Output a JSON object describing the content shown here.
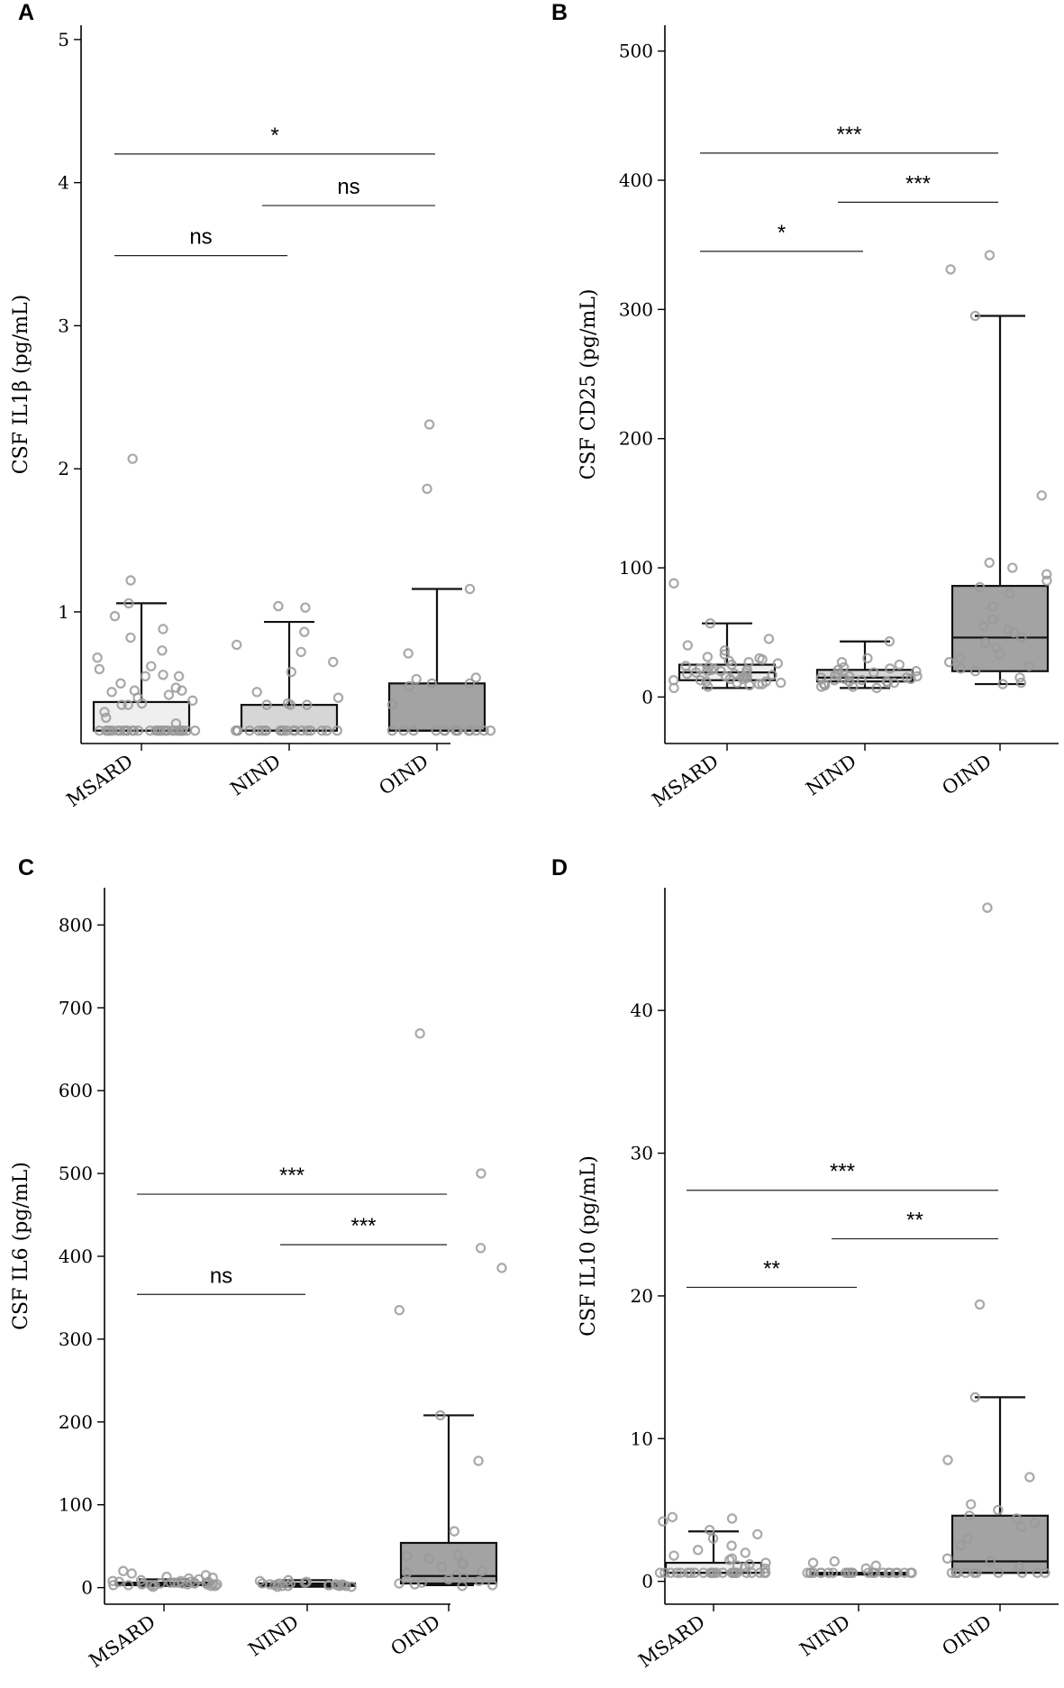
{
  "chart_data": [
    {
      "panel": "A",
      "type": "box",
      "ylabel": "CSF IL1β (pg/mL)",
      "ylim": [
        0.08,
        5.1
      ],
      "yticks": [
        1,
        2,
        3,
        4,
        5
      ],
      "categories": [
        "MSARD",
        "NIND",
        "OIND"
      ],
      "boxes": [
        {
          "name": "MSARD",
          "q1": 0.17,
          "median": 0.17,
          "q3": 0.37,
          "whisker_low": 0.17,
          "whisker_high": 1.06,
          "fill": "#efefef"
        },
        {
          "name": "NIND",
          "q1": 0.17,
          "median": 0.17,
          "q3": 0.35,
          "whisker_low": 0.17,
          "whisker_high": 0.93,
          "fill": "#d6d6d6"
        },
        {
          "name": "OIND",
          "q1": 0.17,
          "median": 0.17,
          "q3": 0.5,
          "whisker_low": 0.17,
          "whisker_high": 1.16,
          "fill": "#a3a3a3"
        }
      ],
      "points": [
        [
          0.17,
          0.17,
          0.17,
          0.17,
          0.17,
          0.17,
          0.17,
          0.17,
          0.17,
          0.17,
          0.17,
          0.17,
          0.17,
          0.17,
          0.17,
          0.17,
          0.17,
          0.17,
          0.17,
          0.17,
          0.17,
          0.17,
          0.17,
          0.17,
          0.17,
          0.17,
          0.17,
          0.17,
          0.17,
          0.17,
          0.22,
          0.26,
          0.3,
          0.35,
          0.35,
          0.36,
          0.38,
          0.4,
          0.42,
          0.44,
          0.45,
          0.45,
          0.47,
          0.5,
          0.55,
          0.55,
          0.56,
          0.6,
          0.62,
          0.68,
          0.73,
          0.82,
          0.88,
          0.97,
          1.06,
          1.22,
          2.07
        ],
        [
          0.17,
          0.17,
          0.17,
          0.17,
          0.17,
          0.17,
          0.17,
          0.17,
          0.17,
          0.17,
          0.17,
          0.17,
          0.17,
          0.17,
          0.17,
          0.17,
          0.17,
          0.17,
          0.17,
          0.17,
          0.35,
          0.35,
          0.35,
          0.36,
          0.4,
          0.44,
          0.58,
          0.65,
          0.72,
          0.77,
          0.86,
          1.03,
          1.04
        ],
        [
          0.17,
          0.17,
          0.17,
          0.17,
          0.17,
          0.17,
          0.17,
          0.17,
          0.17,
          0.17,
          0.17,
          0.17,
          0.17,
          0.17,
          0.35,
          0.48,
          0.5,
          0.5,
          0.53,
          0.54,
          0.71,
          1.16,
          1.86,
          2.31
        ]
      ],
      "comparisons": [
        {
          "from": "MSARD",
          "to": "NIND",
          "label": "ns",
          "y": 3.49
        },
        {
          "from": "NIND",
          "to": "OIND",
          "label": "ns",
          "y": 3.84
        },
        {
          "from": "MSARD",
          "to": "OIND",
          "label": "*",
          "y": 4.2
        }
      ]
    },
    {
      "panel": "B",
      "type": "box",
      "ylabel": "CSF CD25 (pg/mL)",
      "ylim": [
        -36,
        520
      ],
      "yticks": [
        0,
        100,
        200,
        300,
        400,
        500
      ],
      "categories": [
        "MSARD",
        "NIND",
        "OIND"
      ],
      "boxes": [
        {
          "name": "MSARD",
          "q1": 13,
          "median": 19,
          "q3": 25,
          "whisker_low": 7,
          "whisker_high": 57,
          "fill": "#efefef"
        },
        {
          "name": "NIND",
          "q1": 12,
          "median": 15,
          "q3": 21,
          "whisker_low": 7,
          "whisker_high": 43,
          "fill": "#d6d6d6"
        },
        {
          "name": "OIND",
          "q1": 20,
          "median": 46,
          "q3": 86,
          "whisker_low": 10,
          "whisker_high": 295,
          "fill": "#a3a3a3"
        }
      ],
      "points": [
        [
          7,
          8,
          9,
          10,
          10,
          11,
          11,
          12,
          12,
          13,
          13,
          14,
          14,
          15,
          15,
          16,
          16,
          17,
          17,
          18,
          18,
          19,
          19,
          20,
          20,
          21,
          21,
          22,
          22,
          23,
          24,
          25,
          26,
          27,
          28,
          29,
          30,
          31,
          33,
          36,
          40,
          45,
          57,
          88
        ],
        [
          7,
          8,
          8,
          9,
          10,
          10,
          11,
          11,
          12,
          12,
          13,
          13,
          14,
          14,
          15,
          15,
          16,
          16,
          17,
          18,
          19,
          20,
          21,
          22,
          23,
          25,
          27,
          30,
          43
        ],
        [
          10,
          11,
          15,
          20,
          22,
          24,
          27,
          30,
          33,
          38,
          42,
          46,
          50,
          52,
          55,
          60,
          70,
          80,
          85,
          90,
          95,
          100,
          104,
          156,
          295,
          331,
          342
        ]
      ],
      "comparisons": [
        {
          "from": "MSARD",
          "to": "NIND",
          "label": "*",
          "y": 345
        },
        {
          "from": "NIND",
          "to": "OIND",
          "label": "***",
          "y": 383
        },
        {
          "from": "MSARD",
          "to": "OIND",
          "label": "***",
          "y": 421
        }
      ]
    },
    {
      "panel": "C",
      "type": "box",
      "ylabel": "CSF IL6 (pg/mL)",
      "ylim": [
        -20,
        845
      ],
      "yticks": [
        0,
        100,
        200,
        300,
        400,
        500,
        600,
        700,
        800
      ],
      "categories": [
        "MSARD",
        "NIND",
        "OIND"
      ],
      "boxes": [
        {
          "name": "MSARD",
          "q1": 3,
          "median": 4,
          "q3": 6,
          "whisker_low": 2,
          "whisker_high": 10,
          "fill": "#efefef"
        },
        {
          "name": "NIND",
          "q1": 2,
          "median": 3,
          "q3": 5,
          "whisker_low": 1,
          "whisker_high": 9,
          "fill": "#d6d6d6"
        },
        {
          "name": "OIND",
          "q1": 5,
          "median": 14,
          "q3": 54,
          "whisker_low": 3,
          "whisker_high": 208,
          "fill": "#a3a3a3"
        }
      ],
      "points": [
        [
          1,
          2,
          2,
          3,
          3,
          3,
          3,
          4,
          4,
          4,
          4,
          4,
          5,
          5,
          5,
          5,
          5,
          6,
          6,
          6,
          6,
          7,
          7,
          7,
          8,
          8,
          9,
          10,
          11,
          12,
          13,
          15,
          17,
          20
        ],
        [
          1,
          1,
          2,
          2,
          2,
          2,
          3,
          3,
          3,
          3,
          3,
          4,
          4,
          4,
          4,
          5,
          5,
          5,
          6,
          7,
          8,
          9
        ],
        [
          2,
          3,
          4,
          5,
          6,
          8,
          10,
          12,
          15,
          18,
          20,
          25,
          28,
          30,
          35,
          38,
          40,
          68,
          153,
          208,
          335,
          386,
          410,
          500,
          669
        ]
      ],
      "comparisons": [
        {
          "from": "MSARD",
          "to": "NIND",
          "label": "ns",
          "y": 354
        },
        {
          "from": "NIND",
          "to": "OIND",
          "label": "***",
          "y": 414
        },
        {
          "from": "MSARD",
          "to": "OIND",
          "label": "***",
          "y": 475
        }
      ]
    },
    {
      "panel": "D",
      "type": "box",
      "ylabel": "CSF IL10 (pg/mL)",
      "ylim": [
        -1.6,
        48.6
      ],
      "yticks": [
        0,
        10,
        20,
        30,
        40
      ],
      "categories": [
        "MSARD",
        "NIND",
        "OIND"
      ],
      "boxes": [
        {
          "name": "MSARD",
          "q1": 0.6,
          "median": 0.6,
          "q3": 1.3,
          "whisker_low": 0.6,
          "whisker_high": 3.5,
          "fill": "#efefef"
        },
        {
          "name": "NIND",
          "q1": 0.6,
          "median": 0.6,
          "q3": 0.6,
          "whisker_low": 0.6,
          "whisker_high": 0.6,
          "fill": "#d6d6d6"
        },
        {
          "name": "OIND",
          "q1": 0.6,
          "median": 1.4,
          "q3": 4.6,
          "whisker_low": 0.6,
          "whisker_high": 12.9,
          "fill": "#a3a3a3"
        }
      ],
      "points": [
        [
          0.6,
          0.6,
          0.6,
          0.6,
          0.6,
          0.6,
          0.6,
          0.6,
          0.6,
          0.6,
          0.6,
          0.6,
          0.6,
          0.6,
          0.6,
          0.6,
          0.6,
          0.6,
          0.6,
          0.6,
          0.6,
          0.6,
          0.6,
          0.6,
          0.6,
          0.9,
          1.0,
          1.1,
          1.2,
          1.3,
          1.5,
          1.6,
          1.8,
          2.0,
          2.2,
          2.5,
          3.0,
          3.3,
          3.6,
          4.2,
          4.4,
          4.5
        ],
        [
          0.6,
          0.6,
          0.6,
          0.6,
          0.6,
          0.6,
          0.6,
          0.6,
          0.6,
          0.6,
          0.6,
          0.6,
          0.6,
          0.6,
          0.6,
          0.6,
          0.6,
          0.6,
          0.6,
          0.6,
          0.6,
          0.6,
          0.6,
          0.6,
          0.9,
          1.1,
          1.3,
          1.4
        ],
        [
          0.6,
          0.6,
          0.6,
          0.6,
          0.6,
          0.6,
          0.6,
          0.6,
          0.6,
          0.6,
          0.6,
          1.0,
          1.4,
          1.6,
          2.5,
          3.0,
          3.8,
          4.1,
          4.4,
          4.6,
          5.0,
          5.4,
          7.3,
          8.5,
          12.9,
          19.4,
          47.2
        ]
      ],
      "comparisons": [
        {
          "from": "MSARD",
          "to": "NIND",
          "label": "**",
          "y": 20.6
        },
        {
          "from": "NIND",
          "to": "OIND",
          "label": "**",
          "y": 24.0
        },
        {
          "from": "MSARD",
          "to": "OIND",
          "label": "***",
          "y": 27.4
        }
      ]
    }
  ]
}
